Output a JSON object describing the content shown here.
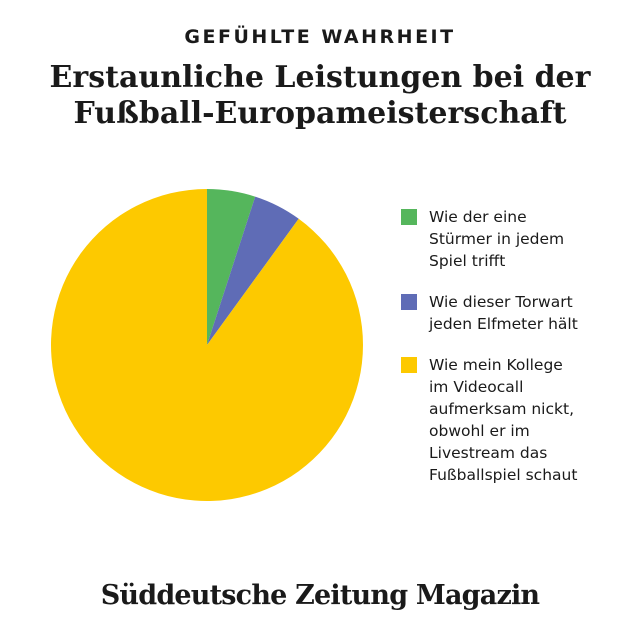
{
  "kicker": "GEFÜHLTE WAHRHEIT",
  "headline": {
    "line1": "Erstaunliche Leistungen bei der",
    "line2": "Fußball-Europameisterschaft"
  },
  "chart_data": {
    "type": "pie",
    "title": "Erstaunliche Leistungen bei der Fußball-Europameisterschaft",
    "start_angle_deg": 0,
    "direction": "clockwise",
    "legend_position": "right",
    "slices": [
      {
        "label": "Wie der eine Stürmer in jedem Spiel trifft",
        "lines": [
          "Wie der eine",
          "Stürmer in jedem",
          "Spiel trifft"
        ],
        "value": 5,
        "color": "#55b65c"
      },
      {
        "label": "Wie dieser Torwart jeden Elfmeter hält",
        "lines": [
          "Wie dieser Torwart",
          "jeden Elfmeter hält"
        ],
        "value": 5,
        "color": "#5f6cb6"
      },
      {
        "label": "Wie mein Kollege im Videocall aufmerksam nickt, obwohl er im Livestream das Fußballspiel schaut",
        "lines": [
          "Wie mein Kollege",
          "im Videocall",
          "aufmerksam nickt,",
          "obwohl er im",
          "Livestream das",
          "Fußballspiel schaut"
        ],
        "value": 90,
        "color": "#fdc900"
      }
    ]
  },
  "brand": "Süddeutsche Zeitung Magazin"
}
